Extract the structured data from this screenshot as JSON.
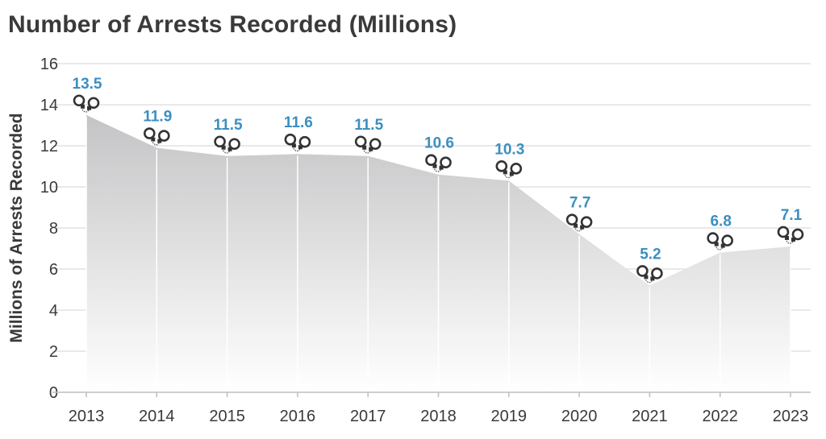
{
  "chart_data": {
    "type": "area",
    "title": "Number of Arrests Recorded (Millions)",
    "ylabel": "Millions of Arrests Recorded",
    "xlabel": "",
    "categories": [
      "2013",
      "2014",
      "2015",
      "2016",
      "2017",
      "2018",
      "2019",
      "2020",
      "2021",
      "2022",
      "2023"
    ],
    "series": [
      {
        "values": [
          13.5,
          11.9,
          11.5,
          11.6,
          11.5,
          10.6,
          10.3,
          7.7,
          5.2,
          6.8,
          7.1
        ]
      }
    ],
    "data_labels": [
      "13.5",
      "11.9",
      "11.5",
      "11.6",
      "11.5",
      "10.6",
      "10.3",
      "7.7",
      "5.2",
      "6.8",
      "7.1"
    ],
    "ylim": [
      0,
      16
    ],
    "yticks": [
      0,
      2,
      4,
      6,
      8,
      10,
      12,
      14,
      16
    ],
    "grid": true,
    "marker_icon": "handcuffs-icon",
    "colors": {
      "label": "#3b8fc0",
      "area_top": "#c4c4c6",
      "area_bottom": "#ffffff",
      "text": "#3a3a3a",
      "grid": "#d3d3d3",
      "icon": "#333333"
    }
  }
}
